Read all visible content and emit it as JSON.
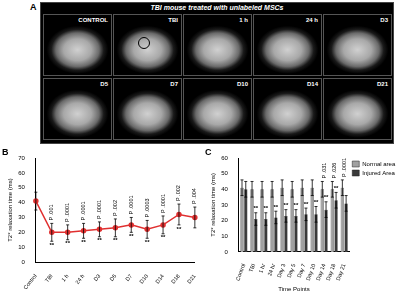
{
  "panel_a": {
    "panel_label": "A",
    "title": "TBI mouse treated with unlabeled MSCs",
    "images": [
      {
        "label": "CONTROL",
        "lesion_marked": false
      },
      {
        "label": "TBI",
        "lesion_marked": true
      },
      {
        "label": "1 h",
        "lesion_marked": false
      },
      {
        "label": "24 h",
        "lesion_marked": false
      },
      {
        "label": "D3",
        "lesion_marked": false
      },
      {
        "label": "D5",
        "lesion_marked": false
      },
      {
        "label": "D7",
        "lesion_marked": false
      },
      {
        "label": "D10",
        "lesion_marked": false
      },
      {
        "label": "D14",
        "lesion_marked": false
      },
      {
        "label": "D21",
        "lesion_marked": false
      }
    ]
  },
  "chart_data": [
    {
      "type": "line",
      "panel_label": "B",
      "y_label": "T2* relaxation time (ms)",
      "categories": [
        "Control",
        "TBI",
        "1 h",
        "24 h",
        "D3",
        "D5",
        "D7",
        "D10",
        "D14",
        "D18",
        "D21"
      ],
      "series": [
        {
          "name": "T2* relaxation time",
          "color": "#e03030",
          "values": [
            41,
            20,
            20,
            21,
            22,
            23,
            25,
            22,
            25,
            32,
            30
          ],
          "errors": [
            6,
            6,
            5,
            5,
            5,
            6,
            5,
            6,
            6,
            7,
            7
          ]
        }
      ],
      "ylim": [
        0,
        70
      ],
      "yticks": [
        0,
        10,
        20,
        30,
        40,
        50,
        60,
        70
      ],
      "grid": false,
      "annotations": [
        {
          "text": "**",
          "category": "TBI"
        },
        {
          "text": "**",
          "category": "1 h"
        },
        {
          "text": "**",
          "category": "24 h"
        },
        {
          "text": "**",
          "category": "D3"
        },
        {
          "text": "**",
          "category": "D5"
        },
        {
          "text": "**",
          "category": "D7"
        },
        {
          "text": "**",
          "category": "D10"
        },
        {
          "text": "**",
          "category": "D14"
        },
        {
          "text": "**",
          "category": "D18"
        }
      ],
      "p_values": [
        {
          "text": "P .001",
          "category": "TBI"
        },
        {
          "text": "P .0001",
          "category": "1 h"
        },
        {
          "text": "P .0001",
          "category": "24 h"
        },
        {
          "text": "P .0001",
          "category": "D3"
        },
        {
          "text": "P .002",
          "category": "D5"
        },
        {
          "text": "P .0001",
          "category": "D7"
        },
        {
          "text": "P .0003",
          "category": "D10"
        },
        {
          "text": "P .0001",
          "category": "D14"
        },
        {
          "text": "P .002",
          "category": "D18"
        },
        {
          "text": "P .004",
          "category": "D21"
        }
      ]
    },
    {
      "type": "bar",
      "panel_label": "C",
      "y_label": "T2* relaxation time (ms)",
      "x_label": "Time Points",
      "categories": [
        "Control",
        "TBI",
        "1 hr",
        "24 hr",
        "Day 3",
        "Day 5",
        "Day 7",
        "Day 10",
        "Day 14",
        "Day 18",
        "Day 21"
      ],
      "series": [
        {
          "name": "Normal area",
          "color": "#a0a0a0",
          "values": [
            41,
            40,
            40,
            40,
            41,
            40,
            41,
            41,
            40,
            40,
            41
          ],
          "errors": [
            5,
            5,
            5,
            5,
            5,
            5,
            5,
            5,
            5,
            5,
            5
          ]
        },
        {
          "name": "Injured Area",
          "color": "#3a3a3a",
          "values": [
            40,
            21,
            21,
            22,
            23,
            23,
            24,
            24,
            27,
            33,
            31
          ],
          "errors": [
            5,
            4,
            4,
            4,
            4,
            4,
            4,
            5,
            5,
            5,
            5
          ]
        }
      ],
      "ylim": [
        0,
        60
      ],
      "yticks": [
        0,
        10,
        20,
        30,
        40,
        50,
        60
      ],
      "grid": false,
      "legend": "right",
      "annotations": [
        {
          "text": "**",
          "category": "TBI",
          "series": "Injured Area"
        },
        {
          "text": "**",
          "category": "1 hr",
          "series": "Injured Area"
        },
        {
          "text": "**",
          "category": "24 hr",
          "series": "Injured Area"
        },
        {
          "text": "**",
          "category": "Day 3",
          "series": "Injured Area"
        },
        {
          "text": "**",
          "category": "Day 5",
          "series": "Injured Area"
        },
        {
          "text": "**",
          "category": "Day 7",
          "series": "Injured Area"
        },
        {
          "text": "**",
          "category": "Day 10",
          "series": "Injured Area"
        },
        {
          "text": "**",
          "category": "Day 14",
          "series": "Injured Area"
        },
        {
          "text": "**",
          "category": "Day 18",
          "series": "Injured Area"
        }
      ],
      "p_values": [
        {
          "text": "P .031",
          "category": "Day 14"
        },
        {
          "text": "P .026",
          "category": "Day 18"
        },
        {
          "text": "P .0001",
          "category": "Day 21"
        }
      ]
    }
  ]
}
